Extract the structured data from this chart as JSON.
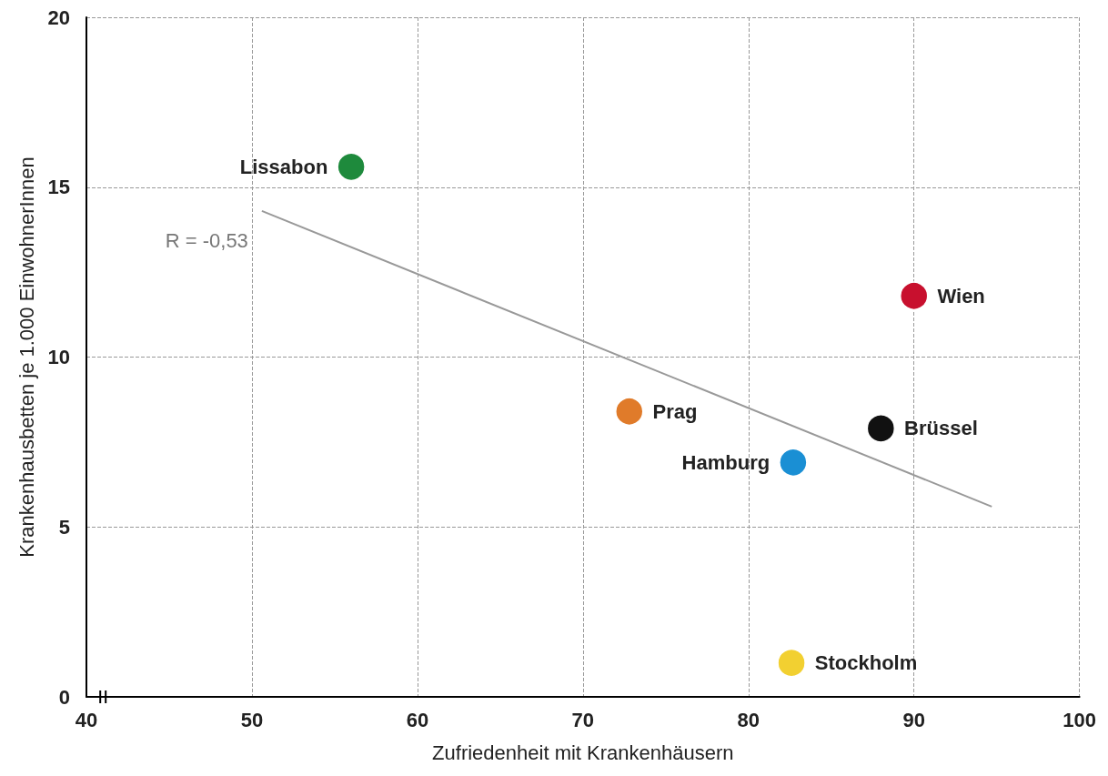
{
  "chart_data": {
    "type": "scatter",
    "xlabel": "Zufriedenheit mit Krankenhäusern",
    "ylabel": "Krankenhausbetten je 1.000 EinwohnerInnen",
    "xlim": [
      40,
      100
    ],
    "xticks": [
      40,
      50,
      60,
      70,
      80,
      90,
      100
    ],
    "ylim": [
      0,
      20
    ],
    "yticks": [
      0,
      5,
      10,
      15,
      20
    ],
    "grid": true,
    "legend": false,
    "marker": "circle",
    "series": [
      {
        "name": "Lissabon",
        "color": "#1e8a3c",
        "x": [
          56.0
        ],
        "values": [
          15.6
        ]
      },
      {
        "name": "Wien",
        "color": "#c8102e",
        "x": [
          90.0
        ],
        "values": [
          11.8
        ]
      },
      {
        "name": "Prag",
        "color": "#e07b2a",
        "x": [
          72.8
        ],
        "values": [
          8.4
        ]
      },
      {
        "name": "Brüssel",
        "color": "#111111",
        "x": [
          88.0
        ],
        "values": [
          7.9
        ]
      },
      {
        "name": "Hamburg",
        "color": "#1a8fd4",
        "x": [
          82.7
        ],
        "values": [
          6.9
        ]
      },
      {
        "name": "Stockholm",
        "color": "#f2d031",
        "x": [
          82.6
        ],
        "values": [
          1.0
        ]
      },
      {
        "type": "line",
        "color": "#999999",
        "x": [
          50.6,
          94.7
        ],
        "values": [
          14.3,
          5.6
        ],
        "marker": "none"
      }
    ],
    "annotations": [
      "R = -0,53"
    ]
  }
}
